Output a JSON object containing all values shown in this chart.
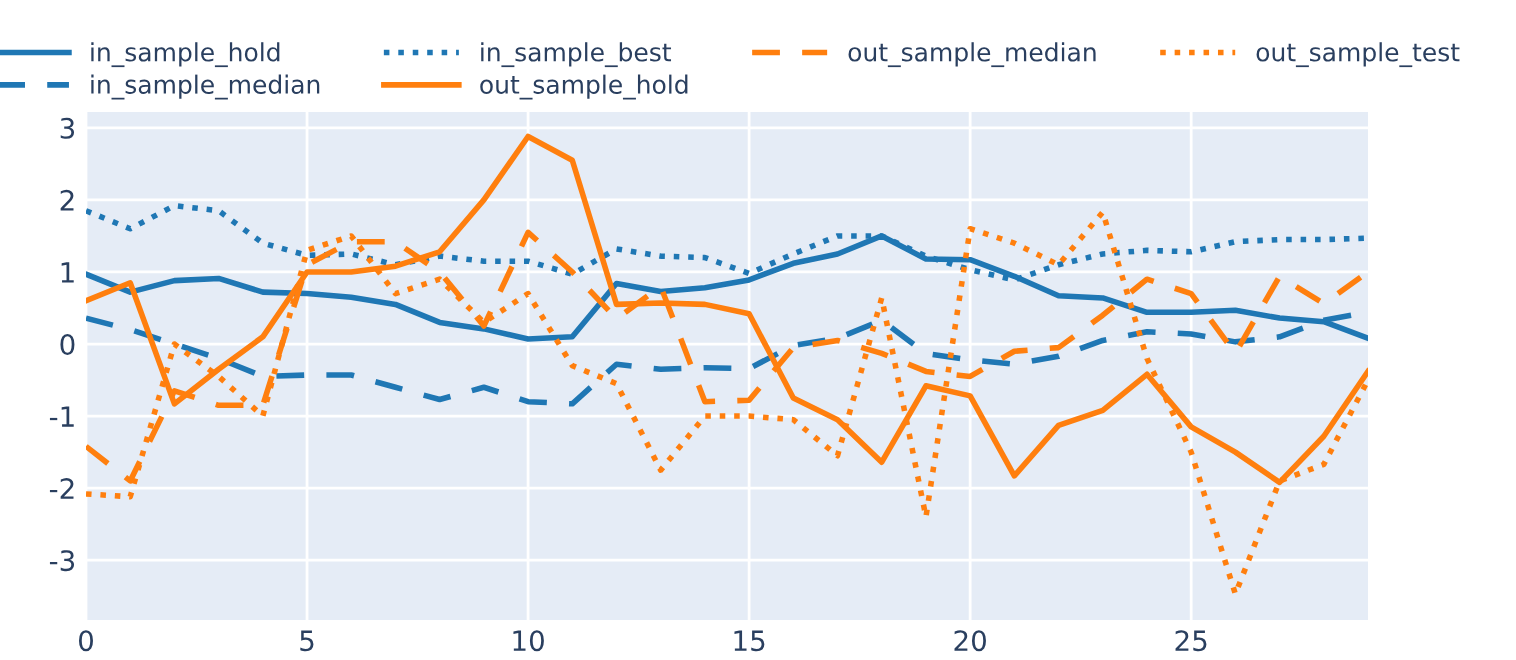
{
  "chart_data": {
    "type": "line",
    "x": [
      0,
      1,
      2,
      3,
      4,
      5,
      6,
      7,
      8,
      9,
      10,
      11,
      12,
      13,
      14,
      15,
      16,
      17,
      18,
      19,
      20,
      21,
      22,
      23,
      24,
      25,
      26,
      27,
      28,
      29
    ],
    "xlim": [
      0,
      29
    ],
    "ylim": [
      -3.83,
      3.22
    ],
    "xticks": [
      0,
      5,
      10,
      15,
      20,
      25
    ],
    "yticks": [
      -3,
      -2,
      -1,
      0,
      1,
      2,
      3
    ],
    "grid": true,
    "legend": "top",
    "series": [
      {
        "name": "in_sample_hold",
        "color": "#1f77b4",
        "line_style": "solid",
        "values": [
          0.97,
          0.72,
          0.88,
          0.91,
          0.72,
          0.7,
          0.65,
          0.55,
          0.3,
          0.21,
          0.07,
          0.1,
          0.84,
          0.73,
          0.78,
          0.89,
          1.12,
          1.25,
          1.5,
          1.18,
          1.17,
          0.94,
          0.67,
          0.64,
          0.44,
          0.44,
          0.47,
          0.36,
          0.31,
          0.08
        ]
      },
      {
        "name": "in_sample_median",
        "color": "#1f77b4",
        "line_style": "dashed",
        "values": [
          0.36,
          0.2,
          0.0,
          -0.2,
          -0.45,
          -0.43,
          -0.43,
          -0.6,
          -0.77,
          -0.6,
          -0.8,
          -0.83,
          -0.28,
          -0.35,
          -0.33,
          -0.34,
          -0.02,
          0.08,
          0.33,
          -0.13,
          -0.22,
          -0.28,
          -0.17,
          0.05,
          0.17,
          0.14,
          0.03,
          0.1,
          0.33,
          0.44
        ]
      },
      {
        "name": "in_sample_best",
        "color": "#1f77b4",
        "line_style": "dotted",
        "values": [
          1.85,
          1.6,
          1.92,
          1.85,
          1.4,
          1.23,
          1.25,
          1.1,
          1.22,
          1.15,
          1.15,
          0.97,
          1.32,
          1.22,
          1.2,
          0.98,
          1.25,
          1.5,
          1.5,
          1.22,
          1.03,
          0.89,
          1.1,
          1.25,
          1.3,
          1.28,
          1.42,
          1.45,
          1.45,
          1.47
        ]
      },
      {
        "name": "out_sample_hold",
        "color": "#ff7f0e",
        "line_style": "solid",
        "values": [
          0.6,
          0.85,
          -0.83,
          -0.35,
          0.1,
          1.0,
          1.0,
          1.08,
          1.28,
          2.0,
          2.88,
          2.55,
          0.55,
          0.57,
          0.55,
          0.42,
          -0.75,
          -1.05,
          -1.64,
          -0.58,
          -0.72,
          -1.83,
          -1.13,
          -0.92,
          -0.42,
          -1.15,
          -1.5,
          -1.92,
          -1.28,
          -0.38
        ]
      },
      {
        "name": "out_sample_median",
        "color": "#ff7f0e",
        "line_style": "dashed",
        "values": [
          -1.42,
          -1.9,
          -0.65,
          -0.85,
          -0.85,
          1.1,
          1.42,
          1.42,
          1.0,
          0.25,
          1.55,
          1.0,
          0.35,
          0.8,
          -0.8,
          -0.78,
          -0.05,
          0.05,
          -0.13,
          -0.38,
          -0.45,
          -0.1,
          -0.05,
          0.4,
          0.9,
          0.7,
          -0.13,
          0.94,
          0.56,
          1.0
        ]
      },
      {
        "name": "out_sample_test",
        "color": "#ff7f0e",
        "line_style": "dotted",
        "values": [
          -2.08,
          -2.12,
          0.0,
          -0.45,
          -1.0,
          1.3,
          1.5,
          0.7,
          0.9,
          0.3,
          0.7,
          -0.3,
          -0.55,
          -1.75,
          -1.0,
          -1.0,
          -1.05,
          -1.55,
          0.64,
          -2.4,
          1.6,
          1.4,
          1.1,
          1.83,
          -0.2,
          -1.5,
          -3.47,
          -1.9,
          -1.67,
          -0.5
        ]
      }
    ]
  }
}
